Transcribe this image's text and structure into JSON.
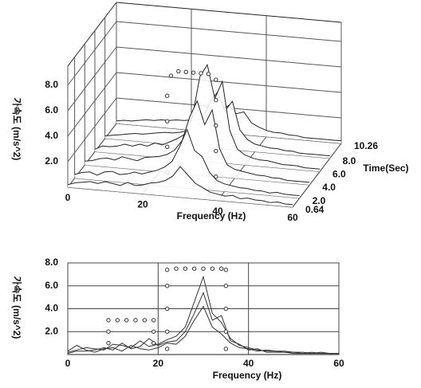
{
  "chart_data": [
    {
      "type": "waterfall",
      "xlabel": "Frequency (Hz)",
      "ylabel": "Time(Sec)",
      "zlabel": "가속도 (m/s^2)",
      "xlim": [
        0,
        60
      ],
      "xticks": [
        0,
        20,
        40,
        60
      ],
      "ylim": [
        0.64,
        10.26
      ],
      "yticks": [
        0.64,
        {
          "value": 2,
          "label": "2.0"
        },
        {
          "value": 4,
          "label": "4.0"
        },
        {
          "value": 6,
          "label": "6.0"
        },
        {
          "value": 8,
          "label": "8.0"
        },
        10.26
      ],
      "zlim": [
        0,
        9.5
      ],
      "zticks": [
        {
          "value": 2,
          "label": "2.0"
        },
        {
          "value": 4,
          "label": "4.0"
        },
        {
          "value": 6,
          "label": "6.0"
        },
        {
          "value": 8,
          "label": "8.0"
        }
      ],
      "color": "#222222",
      "grid": true,
      "x": [
        0,
        2,
        4,
        6,
        8,
        10,
        12,
        14,
        16,
        18,
        20,
        22,
        24,
        26,
        28,
        30,
        32,
        34,
        36,
        38,
        40,
        42,
        44,
        46,
        48,
        50,
        52,
        54,
        56,
        58,
        60
      ],
      "series": [
        {
          "time": 10.26,
          "values": [
            0.2,
            0.3,
            0.3,
            0.4,
            0.5,
            0.5,
            0.6,
            0.6,
            0.7,
            0.7,
            0.8,
            0.9,
            1.0,
            1.3,
            1.8,
            2.2,
            1.6,
            1.8,
            1.0,
            0.7,
            0.5,
            0.4,
            0.4,
            0.3,
            0.3,
            0.2,
            0.2,
            0.2,
            0.2,
            0.2,
            0.2
          ]
        },
        {
          "time": 8,
          "values": [
            0.2,
            0.3,
            0.4,
            0.5,
            0.6,
            0.6,
            0.7,
            0.8,
            0.9,
            0.9,
            1.0,
            1.2,
            1.5,
            2.2,
            3.6,
            4.4,
            3.0,
            3.8,
            1.6,
            0.9,
            0.6,
            0.5,
            0.4,
            0.4,
            0.3,
            0.3,
            0.2,
            0.2,
            0.2,
            0.2,
            0.2
          ]
        },
        {
          "time": 6,
          "values": [
            0.2,
            0.5,
            0.5,
            0.6,
            0.8,
            0.7,
            0.9,
            0.8,
            1.1,
            1.0,
            1.3,
            1.6,
            2.0,
            3.4,
            6.6,
            7.6,
            5.0,
            6.4,
            2.6,
            1.2,
            0.8,
            0.6,
            0.5,
            0.5,
            0.4,
            0.3,
            0.3,
            0.3,
            0.2,
            0.2,
            0.2
          ]
        },
        {
          "time": 4,
          "values": [
            0.3,
            0.4,
            0.6,
            0.7,
            0.6,
            0.9,
            0.8,
            0.7,
            1.0,
            1.1,
            1.2,
            1.4,
            1.8,
            2.6,
            4.5,
            5.8,
            4.0,
            5.2,
            2.2,
            1.0,
            0.7,
            0.6,
            0.5,
            0.4,
            0.4,
            0.3,
            0.3,
            0.2,
            0.2,
            0.2,
            0.2
          ]
        },
        {
          "time": 2,
          "values": [
            0.3,
            0.5,
            0.6,
            0.4,
            0.7,
            0.8,
            0.6,
            0.7,
            0.9,
            0.8,
            1.0,
            1.2,
            1.5,
            2.0,
            3.2,
            4.6,
            3.0,
            2.6,
            1.4,
            0.8,
            0.6,
            0.5,
            0.4,
            0.4,
            0.3,
            0.3,
            0.2,
            0.3,
            0.2,
            0.2,
            0.2
          ]
        },
        {
          "time": 0.64,
          "values": [
            0.2,
            0.4,
            0.5,
            0.6,
            0.5,
            0.7,
            0.6,
            0.5,
            0.8,
            0.6,
            0.7,
            0.9,
            1.0,
            1.2,
            1.6,
            2.4,
            1.8,
            1.2,
            0.9,
            0.6,
            0.5,
            0.4,
            0.5,
            0.3,
            0.4,
            0.3,
            0.3,
            0.2,
            0.3,
            0.2,
            0.2
          ]
        }
      ],
      "envelope": {
        "time": 4,
        "x": [
          22,
          22,
          22,
          22,
          23,
          25,
          27,
          29,
          31,
          33,
          35,
          35,
          35,
          35,
          35
        ],
        "z": [
          0,
          2,
          4,
          6,
          7.6,
          8,
          8,
          8,
          8,
          8,
          7.6,
          6,
          4,
          2,
          0
        ]
      }
    },
    {
      "type": "line",
      "xlabel": "Frequency (Hz)",
      "ylabel": "가속도 (m/s^2)",
      "xlim": [
        0,
        60
      ],
      "xticks": [
        0,
        20,
        40,
        60
      ],
      "ylim": [
        0,
        8
      ],
      "yticks": [
        {
          "value": 2,
          "label": "2.0"
        },
        {
          "value": 4,
          "label": "4.0"
        },
        {
          "value": 6,
          "label": "6.0"
        },
        {
          "value": 8,
          "label": "8.0"
        }
      ],
      "grid": true,
      "x": [
        0,
        2,
        4,
        6,
        8,
        10,
        12,
        14,
        16,
        18,
        20,
        22,
        24,
        26,
        28,
        30,
        32,
        34,
        36,
        38,
        40,
        42,
        44,
        46,
        48,
        50,
        52,
        54,
        56,
        58,
        60
      ],
      "series": [
        {
          "color": "#333333",
          "values": [
            0.3,
            0.8,
            0.4,
            0.2,
            0.5,
            0.6,
            0.3,
            0.8,
            0.5,
            0.4,
            0.6,
            1.0,
            0.9,
            1.6,
            3.0,
            4.2,
            2.4,
            1.8,
            1.0,
            0.6,
            0.5,
            0.3,
            0.4,
            0.3,
            0.2,
            0.2,
            0.2,
            0.1,
            0.2,
            0.1,
            0.1
          ]
        },
        {
          "color": "#333333",
          "values": [
            0.2,
            0.4,
            0.6,
            0.5,
            0.4,
            0.9,
            0.8,
            0.6,
            1.2,
            0.7,
            0.9,
            1.3,
            1.6,
            2.4,
            4.6,
            6.8,
            3.6,
            2.8,
            1.4,
            0.8,
            0.6,
            0.4,
            0.3,
            0.3,
            0.3,
            0.2,
            0.1,
            0.2,
            0.1,
            0.1,
            0.1
          ]
        },
        {
          "color": "#333333",
          "values": [
            0.1,
            0.3,
            0.3,
            0.4,
            0.6,
            0.4,
            1.0,
            0.5,
            0.7,
            1.4,
            0.8,
            1.1,
            1.2,
            2.0,
            3.6,
            5.4,
            3.0,
            3.4,
            1.2,
            0.9,
            0.4,
            0.5,
            0.2,
            0.2,
            0.2,
            0.1,
            0.1,
            0.1,
            0.1,
            0.1,
            0.1
          ]
        }
      ],
      "envelope": {
        "x": [
          9,
          9,
          9,
          11,
          13,
          15,
          17,
          19,
          19,
          19,
          22,
          22,
          22,
          22,
          22,
          24,
          26,
          28,
          30,
          32,
          34,
          35,
          35,
          35,
          35,
          35
        ],
        "y": [
          1,
          2,
          3,
          3,
          3,
          3,
          3,
          3,
          2,
          1,
          0.5,
          2,
          4,
          6,
          7.4,
          7.5,
          7.5,
          7.5,
          7.5,
          7.5,
          7.5,
          7.4,
          6,
          4,
          2,
          0.5
        ]
      }
    }
  ]
}
